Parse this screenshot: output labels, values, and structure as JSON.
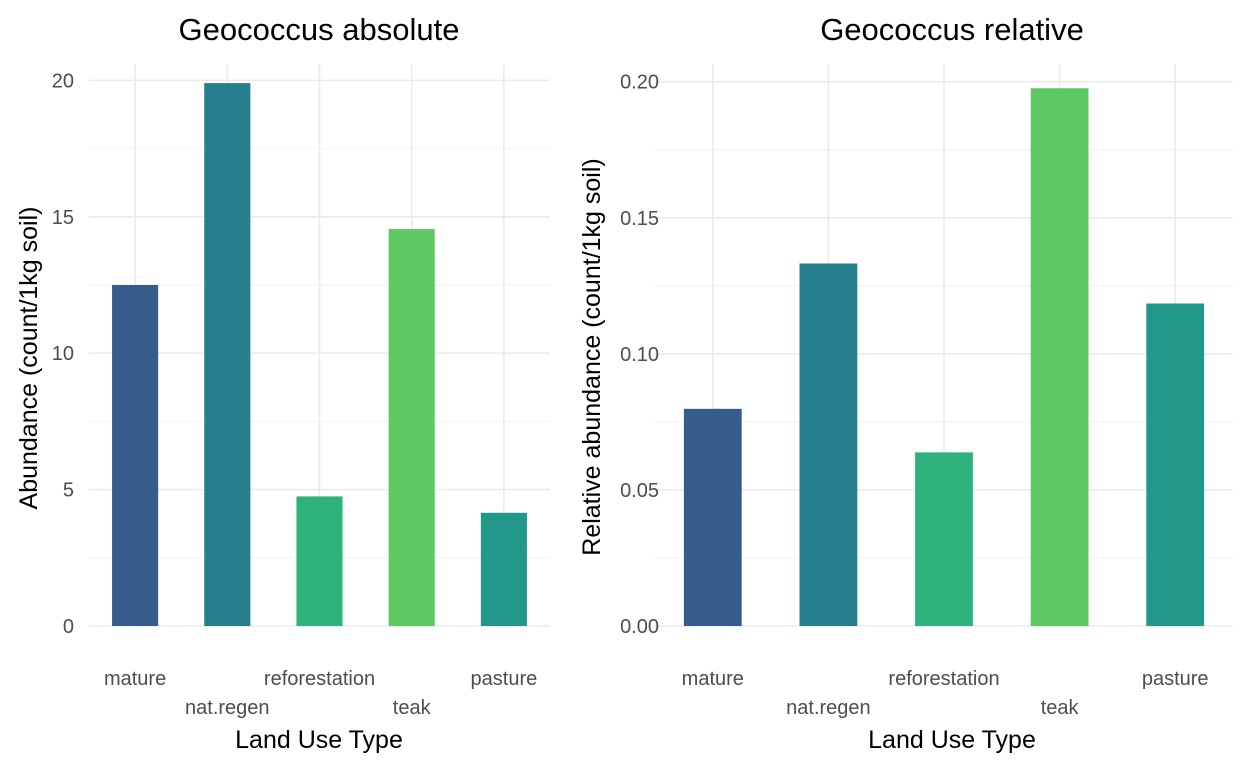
{
  "chart_data": [
    {
      "type": "bar",
      "title": "Geococcus absolute",
      "xlabel": "Land Use Type",
      "ylabel": "Abundance (count/1kg soil)",
      "categories": [
        "mature",
        "nat.regen",
        "reforestation",
        "teak",
        "pasture"
      ],
      "values": [
        12.5,
        19.9,
        4.75,
        14.55,
        4.15
      ],
      "colors": [
        "#365C8D",
        "#277F8E",
        "#2DB27D",
        "#5EC962",
        "#21988A"
      ],
      "ylim": [
        0,
        20.6
      ],
      "yticks": [
        0,
        5,
        10,
        15,
        20
      ],
      "ytick_labels": [
        "0",
        "5",
        "10",
        "15",
        "20"
      ],
      "grid": true,
      "legend": "none"
    },
    {
      "type": "bar",
      "title": "Geococcus relative",
      "xlabel": "Land Use Type",
      "ylabel": "Relative abundance (count/1kg soil)",
      "categories": [
        "mature",
        "nat.regen",
        "reforestation",
        "teak",
        "pasture"
      ],
      "values": [
        0.0798,
        0.1332,
        0.0638,
        0.1976,
        0.1185
      ],
      "colors": [
        "#365C8D",
        "#277F8E",
        "#2DB27D",
        "#5EC962",
        "#21988A"
      ],
      "ylim": [
        0,
        0.2065
      ],
      "yticks": [
        0,
        0.05,
        0.1,
        0.15,
        0.2
      ],
      "ytick_labels": [
        "0.00",
        "0.05",
        "0.10",
        "0.15",
        "0.20"
      ],
      "grid": true,
      "legend": "none"
    }
  ]
}
